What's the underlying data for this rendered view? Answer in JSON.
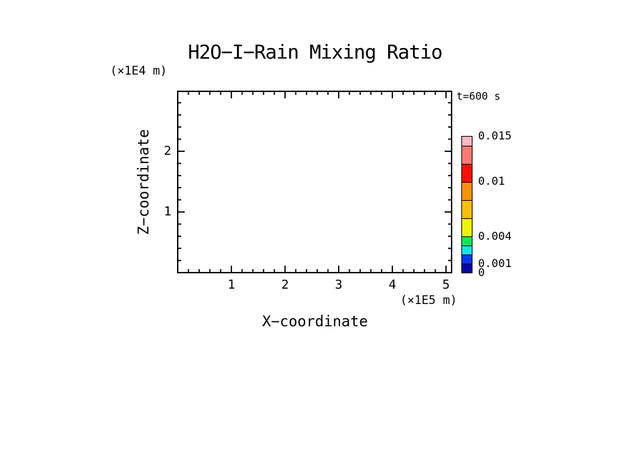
{
  "page": {
    "background": "#ffffff",
    "text_color": "#000000"
  },
  "chart_data": {
    "type": "heatmap",
    "title": "H2O−I−Rain Mixing Ratio",
    "xlabel": "X−coordinate",
    "x_unit": "(×1E5 m)",
    "ylabel": "Z−coordinate",
    "y_unit": "(×1E4 m)",
    "time_annotation": "t=600 s",
    "xlim": [
      0,
      5.1
    ],
    "ylim": [
      0,
      2.99
    ],
    "x_major_ticks": [
      1,
      2,
      3,
      4,
      5
    ],
    "x_tick_labels": [
      "1",
      "2",
      "3",
      "4",
      "5"
    ],
    "x_minor_step": 0.2,
    "y_major_ticks": [
      1,
      2
    ],
    "y_tick_labels": [
      "1",
      "2"
    ],
    "y_minor_step": 0.2,
    "grid": false,
    "plot_area_empty": true,
    "series": [],
    "colorbar": {
      "position": "right",
      "vmin": 0,
      "vmax": 0.015,
      "levels": [
        0,
        0.001,
        0.002,
        0.003,
        0.004,
        0.006,
        0.008,
        0.01,
        0.012,
        0.014,
        0.015
      ],
      "colors": [
        "#0208AA",
        "#0837F2",
        "#0EE4EE",
        "#0DE85A",
        "#EFF20D",
        "#F9C003",
        "#FB9207",
        "#F81000",
        "#F97A72",
        "#F9B8C2"
      ],
      "labeled_levels": [
        {
          "value": 0.015,
          "label": "0.015"
        },
        {
          "value": 0.01,
          "label": "0.01"
        },
        {
          "value": 0.004,
          "label": "0.004"
        },
        {
          "value": 0.001,
          "label": "0.001"
        },
        {
          "value": 0,
          "label": "0"
        }
      ]
    }
  }
}
